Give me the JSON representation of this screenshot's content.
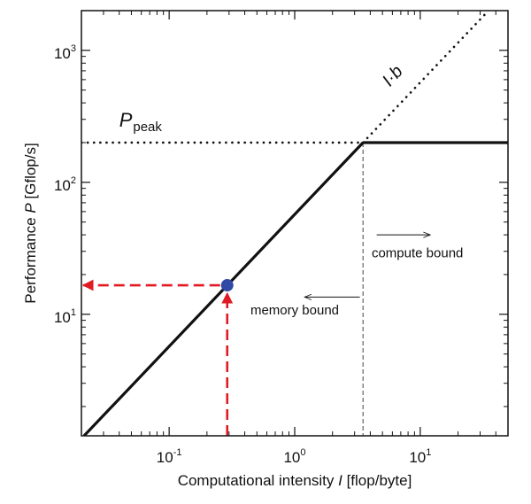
{
  "chart_data": {
    "type": "line",
    "title": "",
    "xlabel": {
      "prefix": "Computational intensity ",
      "var": "I",
      "suffix": " [flop/byte]"
    },
    "ylabel": {
      "prefix": "Performance ",
      "var": "P",
      "suffix": " [Gflop/s]"
    },
    "x_scale": "log",
    "y_scale": "log",
    "xlim": [
      0.02,
      50
    ],
    "ylim": [
      1.2,
      2000
    ],
    "grid": false,
    "x_ticks": [
      {
        "value": 0.1,
        "base": "10",
        "exp": "-1"
      },
      {
        "value": 1,
        "base": "10",
        "exp": "0"
      },
      {
        "value": 10,
        "base": "10",
        "exp": "1"
      }
    ],
    "y_ticks": [
      {
        "value": 10,
        "base": "10",
        "exp": "1"
      },
      {
        "value": 100,
        "base": "10",
        "exp": "2"
      },
      {
        "value": 1000,
        "base": "10",
        "exp": "3"
      }
    ],
    "peak_performance": 200,
    "bandwidth": 57,
    "ridge_point": {
      "x": 3.5,
      "y": 200
    },
    "series": [
      {
        "role": "roofline-memory",
        "x": [
          0.021,
          3.5
        ],
        "y": [
          1.2,
          200
        ],
        "style": "solid",
        "color": "#111111"
      },
      {
        "role": "roofline-compute",
        "x": [
          3.5,
          50
        ],
        "y": [
          200,
          200
        ],
        "style": "solid",
        "color": "#111111"
      },
      {
        "role": "peak-extension",
        "x": [
          0.02,
          3.5
        ],
        "y": [
          200,
          200
        ],
        "style": "dotted",
        "color": "#111111"
      },
      {
        "role": "bandwidth-extension",
        "x": [
          3.5,
          35
        ],
        "y": [
          200,
          2000
        ],
        "style": "dotted",
        "color": "#111111"
      }
    ],
    "highlight_point": {
      "x": 0.29,
      "y": 16.6,
      "color": "#2e4aa6"
    },
    "guides": {
      "ridge_vertical": {
        "x": 3.5,
        "style": "dashed",
        "color": "#444444"
      }
    },
    "arrows": {
      "color": "#e01b24",
      "vertical_from": {
        "x": 0.29,
        "y": 1.2
      },
      "horizontal_to": {
        "x": 0.02,
        "y": 16.6
      }
    },
    "annotations": {
      "peak_label": {
        "main": "P",
        "sub": "peak",
        "x": 0.04,
        "y": 265
      },
      "bandwidth_label": {
        "text": "I·b",
        "x": 6.5,
        "y": 600
      },
      "compute_bound": {
        "text": "compute bound",
        "x": 9.5,
        "y": 27,
        "arrow_from_x": 4.5,
        "arrow_to_x": 12,
        "arrow_y": 40
      },
      "memory_bound": {
        "text": "memory bound",
        "x": 1.0,
        "y": 10,
        "arrow_from_x": 3.3,
        "arrow_to_x": 1.2,
        "arrow_y": 13.5
      }
    }
  }
}
